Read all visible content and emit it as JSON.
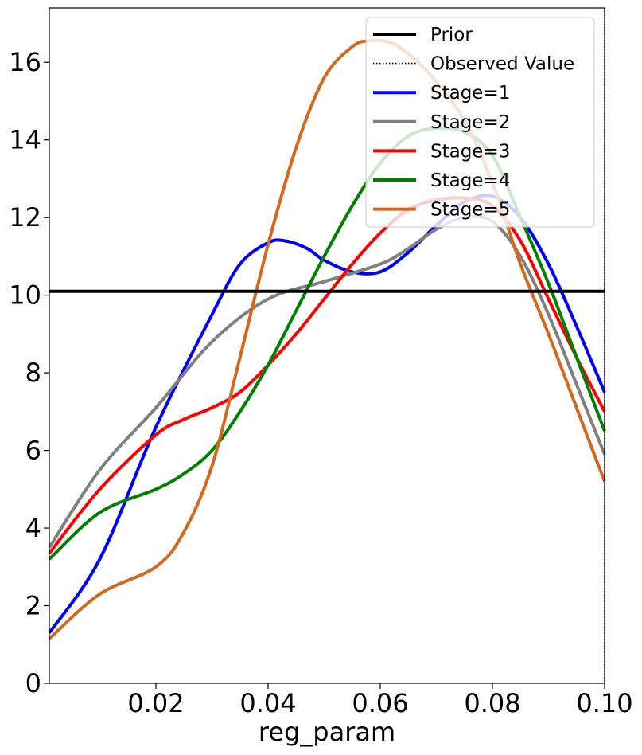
{
  "chart_data": {
    "type": "line",
    "title": "",
    "xlabel": "reg_param",
    "ylabel": "",
    "xlim": [
      0.001,
      0.1
    ],
    "ylim": [
      0,
      17.4
    ],
    "xticks": [
      0.02,
      0.04,
      0.06,
      0.08,
      0.1
    ],
    "xtick_labels": [
      "0.02",
      "0.04",
      "0.06",
      "0.08",
      "0.10"
    ],
    "yticks": [
      0,
      2,
      4,
      6,
      8,
      10,
      12,
      14,
      16
    ],
    "ytick_labels": [
      "0",
      "2",
      "4",
      "6",
      "8",
      "10",
      "12",
      "14",
      "16"
    ],
    "grid": false,
    "legend_position": "top-right",
    "prior": {
      "name": "Prior",
      "value": 10.1,
      "color": "#000000"
    },
    "observed": {
      "name": "Observed Value",
      "x": 0.1,
      "color": "#000000"
    },
    "series": [
      {
        "name": "Stage=1",
        "color": "#0000ff",
        "x": [
          0.001,
          0.01,
          0.02,
          0.03,
          0.035,
          0.04,
          0.043,
          0.047,
          0.05,
          0.055,
          0.06,
          0.065,
          0.07,
          0.075,
          0.08,
          0.085,
          0.09,
          0.095,
          0.1
        ],
        "y": [
          1.3,
          3.2,
          6.6,
          9.5,
          10.8,
          11.35,
          11.4,
          11.2,
          10.9,
          10.6,
          10.6,
          11.1,
          11.8,
          12.4,
          12.55,
          12.0,
          10.8,
          9.2,
          7.5
        ]
      },
      {
        "name": "Stage=2",
        "color": "#808080",
        "x": [
          0.001,
          0.01,
          0.02,
          0.03,
          0.04,
          0.05,
          0.06,
          0.065,
          0.07,
          0.075,
          0.08,
          0.085,
          0.09,
          0.095,
          0.1
        ],
        "y": [
          3.5,
          5.5,
          7.1,
          8.8,
          9.9,
          10.35,
          10.8,
          11.2,
          11.7,
          12.0,
          11.9,
          11.0,
          9.5,
          7.7,
          5.9
        ]
      },
      {
        "name": "Stage=3",
        "color": "#ff0000",
        "x": [
          0.001,
          0.01,
          0.02,
          0.025,
          0.03,
          0.035,
          0.04,
          0.045,
          0.05,
          0.055,
          0.06,
          0.065,
          0.07,
          0.075,
          0.08,
          0.085,
          0.09,
          0.095,
          0.1
        ],
        "y": [
          3.35,
          5.0,
          6.4,
          6.8,
          7.1,
          7.5,
          8.2,
          9.0,
          9.9,
          10.8,
          11.6,
          12.2,
          12.45,
          12.5,
          12.3,
          11.4,
          9.9,
          8.4,
          7.0
        ]
      },
      {
        "name": "Stage=4",
        "color": "#008000",
        "x": [
          0.001,
          0.01,
          0.02,
          0.025,
          0.03,
          0.035,
          0.04,
          0.045,
          0.05,
          0.055,
          0.06,
          0.065,
          0.07,
          0.075,
          0.08,
          0.085,
          0.09,
          0.095,
          0.1
        ],
        "y": [
          3.2,
          4.4,
          5.0,
          5.4,
          6.0,
          7.0,
          8.2,
          9.6,
          11.0,
          12.3,
          13.4,
          14.1,
          14.3,
          14.2,
          13.6,
          12.0,
          10.3,
          8.4,
          6.5
        ]
      },
      {
        "name": "Stage=5",
        "color": "#d2691e",
        "x": [
          0.001,
          0.01,
          0.02,
          0.025,
          0.03,
          0.035,
          0.04,
          0.045,
          0.05,
          0.055,
          0.058,
          0.062,
          0.066,
          0.07,
          0.075,
          0.08,
          0.085,
          0.09,
          0.095,
          0.1
        ],
        "y": [
          1.15,
          2.3,
          3.0,
          3.9,
          5.6,
          8.4,
          11.3,
          13.8,
          15.6,
          16.4,
          16.55,
          16.5,
          16.1,
          15.5,
          14.5,
          12.9,
          10.8,
          9.0,
          7.1,
          5.2
        ]
      }
    ]
  }
}
